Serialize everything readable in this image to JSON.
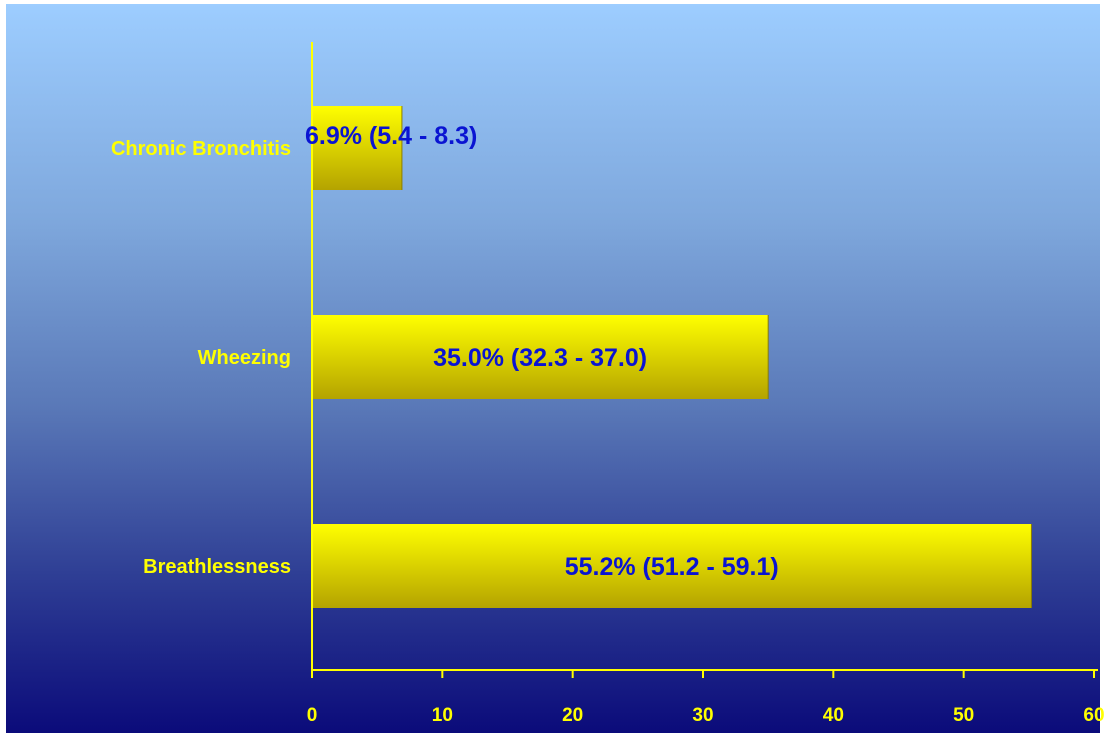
{
  "chart_data": {
    "type": "bar",
    "orientation": "horizontal",
    "categories": [
      "Chronic Bronchitis",
      "Wheezing",
      "Breathlessness"
    ],
    "values": [
      6.9,
      35.0,
      55.2
    ],
    "data_labels": [
      "6.9% (5.4 - 8.3)",
      "35.0% (32.3 - 37.0)",
      "55.2% (51.2 - 59.1)"
    ],
    "xlim": [
      0,
      60
    ],
    "xticks": [
      0,
      10,
      20,
      30,
      40,
      50,
      60
    ],
    "title": "",
    "xlabel": "",
    "ylabel": "",
    "grid": false,
    "legend": "none"
  },
  "colors": {
    "bar_top": "#ffff00",
    "bar_bottom": "#b4a300",
    "axis": "#ffff00",
    "category_text": "#ffff00",
    "tick_text": "#ffff00",
    "data_label_text": "#0a14d2",
    "background_top": "#9dcdff",
    "background_bottom": "#0b0b7a"
  }
}
